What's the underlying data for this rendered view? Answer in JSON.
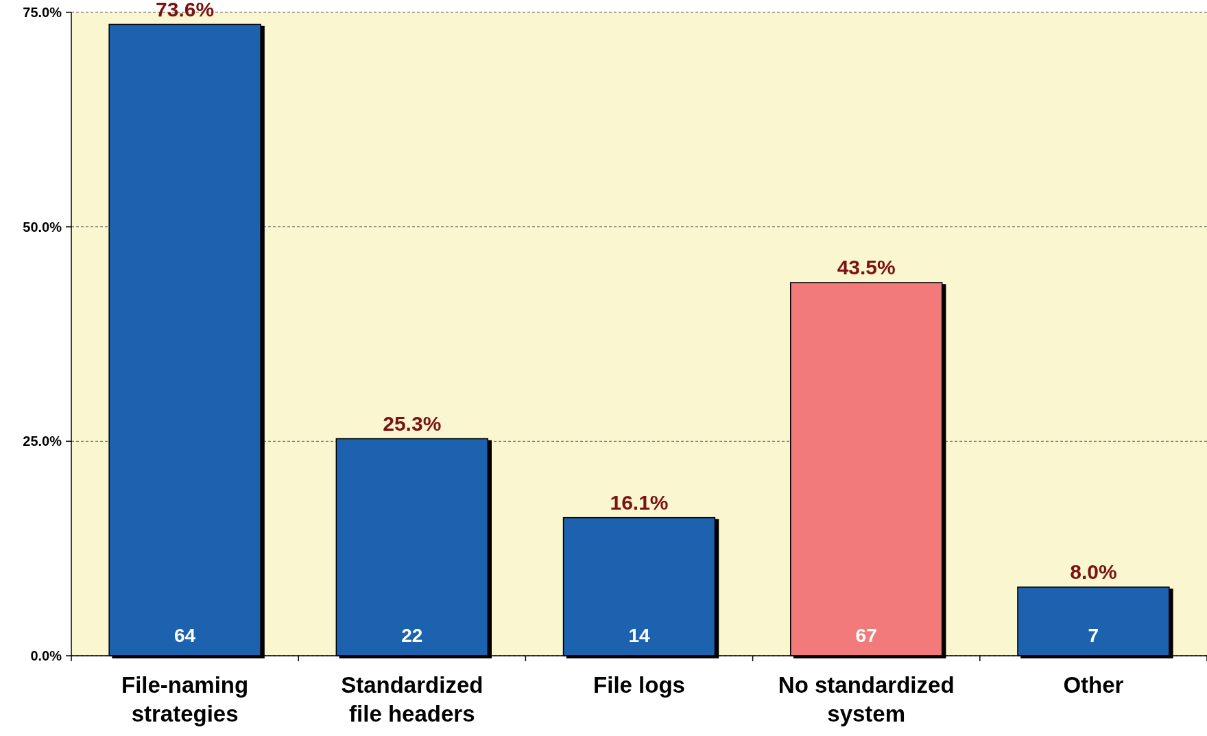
{
  "chart_data": {
    "type": "bar",
    "categories": [
      "File-naming strategies",
      "Standardized file headers",
      "File logs",
      "No standardized system",
      "Other"
    ],
    "values": [
      73.6,
      25.3,
      16.1,
      43.5,
      8.0
    ],
    "colors": [
      "#1f62ae",
      "#1f62ae",
      "#1f62ae",
      "#f27a7a",
      "#1f62ae"
    ],
    "value_labels": [
      "73.6%",
      "25.3%",
      "16.1%",
      "43.5%",
      "8.0%"
    ],
    "annotations": [
      "64",
      "22",
      "14",
      "67",
      "7"
    ],
    "ylim": [
      0,
      75
    ],
    "yticks": [
      {
        "value": 0,
        "label": "0.0%"
      },
      {
        "value": 25,
        "label": "25.0%"
      },
      {
        "value": 50,
        "label": "50.0%"
      },
      {
        "value": 75,
        "label": "75.0%"
      }
    ],
    "grid": "y"
  }
}
